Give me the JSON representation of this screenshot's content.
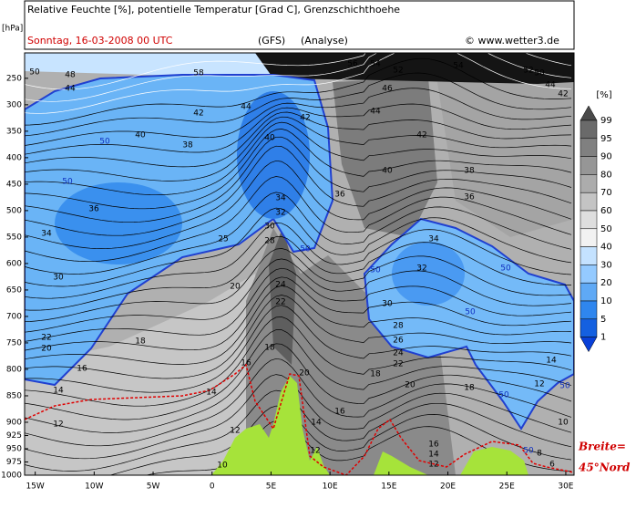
{
  "chart_data": {
    "type": "cross-section",
    "title": "Relative Feuchte [%], potentielle Temperatur [Grad C], Grenzschichthoehe",
    "subtitle": "Sonntag, 16-03-2008   00 UTC",
    "model": "(GFS)",
    "run": "(Analyse)",
    "source": "© www.wetter3.de",
    "y_unit": "[hPa]",
    "ylim": [
      1000,
      202
    ],
    "yticks": [
      250,
      300,
      350,
      400,
      450,
      500,
      550,
      600,
      650,
      700,
      750,
      800,
      850,
      900,
      925,
      950,
      975,
      1000
    ],
    "xlim": [
      -15.9,
      30.7
    ],
    "xticks": [
      {
        "value": -15,
        "label": "15W"
      },
      {
        "value": -10,
        "label": "10W"
      },
      {
        "value": -5,
        "label": "5W"
      },
      0,
      {
        "value": 5,
        "label": "5E"
      },
      {
        "value": 10,
        "label": "10E"
      },
      {
        "value": 15,
        "label": "15E"
      },
      {
        "value": 20,
        "label": "20E"
      },
      {
        "value": 25,
        "label": "25E"
      },
      {
        "value": 30,
        "label": "30E"
      }
    ],
    "isentrope_labels": [
      50,
      48,
      44,
      58,
      56,
      54,
      52,
      54,
      52,
      50,
      46,
      44,
      42,
      42,
      44,
      42,
      40,
      38,
      40,
      36,
      34,
      32,
      30,
      25,
      28,
      34,
      30,
      20,
      24,
      22,
      22,
      20,
      18,
      18,
      16,
      16,
      14,
      14,
      12,
      12,
      20,
      18,
      44,
      42,
      40,
      38,
      36,
      34,
      32,
      30,
      28,
      26,
      24,
      22,
      20,
      18,
      36,
      14,
      16,
      16,
      14,
      14,
      12,
      10,
      8,
      6,
      12,
      10,
      12
    ],
    "humidity_labels": [
      50,
      50,
      50,
      50,
      50,
      50,
      50,
      50,
      50
    ],
    "colorbar": {
      "unit": "[%]",
      "levels": [
        99,
        95,
        90,
        80,
        70,
        60,
        50,
        40,
        30,
        20,
        10,
        5,
        1
      ],
      "colors": [
        "#4a4a4a",
        "#6a6a6a",
        "#808080",
        "#969696",
        "#acacac",
        "#c4c4c4",
        "#dedede",
        "#f2f2f2",
        "#c4e2ff",
        "#94caff",
        "#5fa9f5",
        "#2f86ee",
        "#1460e0",
        "#0840d8"
      ]
    },
    "annotation": [
      "Breite=",
      "45°Nord"
    ]
  }
}
